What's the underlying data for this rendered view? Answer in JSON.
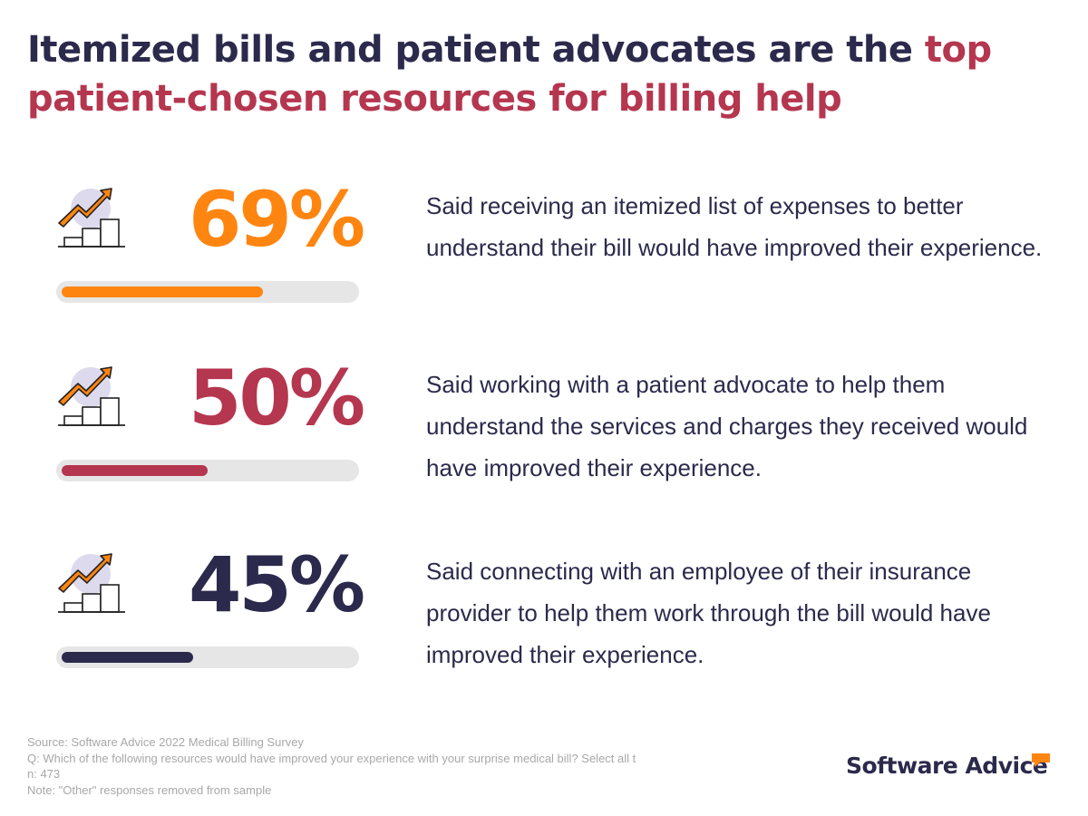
{
  "title": {
    "part1": "Itemized bills and patient advocates are the ",
    "highlight": "top patient-chosen resources for billing help"
  },
  "colors": {
    "navy": "#2b2a4c",
    "red": "#b5364f",
    "orange": "#ff8511",
    "track": "#e6e6e6"
  },
  "stats": [
    {
      "icon": "growth-chart-icon",
      "value": "69%",
      "fraction": 0.69,
      "color": "#ff8511",
      "text": "Said receiving an itemized list of expenses to better understand their bill would have improved their experience."
    },
    {
      "icon": "growth-chart-icon",
      "value": "50%",
      "fraction": 0.5,
      "color": "#b5364f",
      "text": "Said working with a patient advocate to help them understand the services and charges they received would have improved their experience."
    },
    {
      "icon": "growth-chart-icon",
      "value": "45%",
      "fraction": 0.45,
      "color": "#2b2a4c",
      "text": "Said connecting with an employee of their insurance provider to help them work through the bill would have improved their experience."
    }
  ],
  "footer": {
    "source": "Source: Software Advice 2022 Medical Billing Survey",
    "question": "Q: Which of the following resources would have improved your experience with your surprise medical bill? Select all t",
    "n": "n: 473",
    "note": "Note: \"Other\" responses removed from sample"
  },
  "logo": {
    "text": "Software Advice"
  }
}
